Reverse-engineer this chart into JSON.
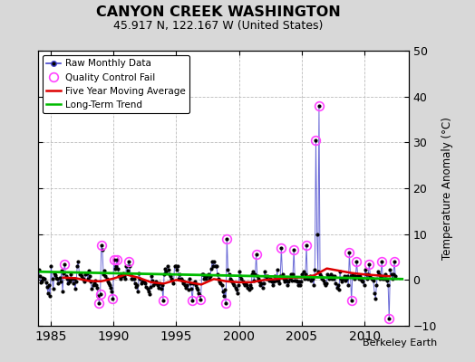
{
  "title": "CANYON CREEK WASHINGTON",
  "subtitle": "45.917 N, 122.167 W (United States)",
  "ylabel": "Temperature Anomaly (°C)",
  "credit": "Berkeley Earth",
  "xlim": [
    1984.0,
    2013.5
  ],
  "ylim": [
    -10,
    50
  ],
  "yticks": [
    -10,
    0,
    10,
    20,
    30,
    40,
    50
  ],
  "xticks": [
    1985,
    1990,
    1995,
    2000,
    2005,
    2010
  ],
  "bg_color": "#d8d8d8",
  "plot_bg_color": "#ffffff",
  "grid_color": "#bbbbbb",
  "raw_line_color": "#4444cc",
  "raw_marker_color": "#000000",
  "qc_fail_color": "#ff44ff",
  "moving_avg_color": "#dd0000",
  "trend_color": "#00bb00",
  "raw_monthly": [
    [
      1984.042,
      2.3
    ],
    [
      1984.125,
      0.8
    ],
    [
      1984.208,
      -0.5
    ],
    [
      1984.292,
      -0.3
    ],
    [
      1984.375,
      0.5
    ],
    [
      1984.458,
      0.3
    ],
    [
      1984.542,
      0.2
    ],
    [
      1984.625,
      -0.5
    ],
    [
      1984.708,
      -1.5
    ],
    [
      1984.792,
      -2.8
    ],
    [
      1984.875,
      -1.2
    ],
    [
      1984.958,
      -3.5
    ],
    [
      1985.042,
      3.0
    ],
    [
      1985.125,
      0.3
    ],
    [
      1985.208,
      -2.0
    ],
    [
      1985.292,
      1.5
    ],
    [
      1985.375,
      1.0
    ],
    [
      1985.458,
      0.5
    ],
    [
      1985.542,
      0.2
    ],
    [
      1985.625,
      -0.8
    ],
    [
      1985.708,
      0.5
    ],
    [
      1985.792,
      -0.3
    ],
    [
      1985.875,
      2.0
    ],
    [
      1985.958,
      -2.5
    ],
    [
      1986.042,
      1.5
    ],
    [
      1986.125,
      3.5
    ],
    [
      1986.208,
      0.8
    ],
    [
      1986.292,
      0.3
    ],
    [
      1986.375,
      -0.8
    ],
    [
      1986.458,
      0.3
    ],
    [
      1986.542,
      -0.3
    ],
    [
      1986.625,
      1.2
    ],
    [
      1986.708,
      0.3
    ],
    [
      1986.792,
      -0.8
    ],
    [
      1986.875,
      0.2
    ],
    [
      1986.958,
      -2.0
    ],
    [
      1987.042,
      -0.3
    ],
    [
      1987.125,
      3.0
    ],
    [
      1987.208,
      4.0
    ],
    [
      1987.292,
      1.2
    ],
    [
      1987.375,
      1.5
    ],
    [
      1987.458,
      0.8
    ],
    [
      1987.542,
      0.3
    ],
    [
      1987.625,
      0.3
    ],
    [
      1987.708,
      -0.3
    ],
    [
      1987.792,
      1.2
    ],
    [
      1987.875,
      1.5
    ],
    [
      1987.958,
      0.3
    ],
    [
      1988.042,
      2.0
    ],
    [
      1988.125,
      0.8
    ],
    [
      1988.208,
      -0.3
    ],
    [
      1988.292,
      -2.0
    ],
    [
      1988.375,
      -1.2
    ],
    [
      1988.458,
      -0.8
    ],
    [
      1988.542,
      -0.2
    ],
    [
      1988.625,
      -1.2
    ],
    [
      1988.708,
      -1.8
    ],
    [
      1988.792,
      -3.5
    ],
    [
      1988.875,
      -5.0
    ],
    [
      1988.958,
      -3.0
    ],
    [
      1989.042,
      7.5
    ],
    [
      1989.125,
      6.5
    ],
    [
      1989.208,
      1.2
    ],
    [
      1989.292,
      2.0
    ],
    [
      1989.375,
      0.8
    ],
    [
      1989.458,
      0.3
    ],
    [
      1989.542,
      -0.3
    ],
    [
      1989.625,
      -0.8
    ],
    [
      1989.708,
      -1.2
    ],
    [
      1989.792,
      -1.8
    ],
    [
      1989.875,
      -2.5
    ],
    [
      1989.958,
      -4.0
    ],
    [
      1990.042,
      4.5
    ],
    [
      1990.125,
      2.5
    ],
    [
      1990.208,
      3.0
    ],
    [
      1990.292,
      4.5
    ],
    [
      1990.375,
      2.5
    ],
    [
      1990.458,
      0.8
    ],
    [
      1990.542,
      0.3
    ],
    [
      1990.625,
      1.2
    ],
    [
      1990.708,
      0.8
    ],
    [
      1990.792,
      1.5
    ],
    [
      1990.875,
      0.8
    ],
    [
      1990.958,
      0.3
    ],
    [
      1991.042,
      3.0
    ],
    [
      1991.125,
      2.0
    ],
    [
      1991.208,
      4.0
    ],
    [
      1991.292,
      3.0
    ],
    [
      1991.375,
      1.2
    ],
    [
      1991.458,
      0.3
    ],
    [
      1991.542,
      0.2
    ],
    [
      1991.625,
      0.3
    ],
    [
      1991.708,
      -0.8
    ],
    [
      1991.792,
      -1.5
    ],
    [
      1991.875,
      -1.2
    ],
    [
      1991.958,
      -2.5
    ],
    [
      1992.042,
      1.5
    ],
    [
      1992.125,
      0.3
    ],
    [
      1992.208,
      -0.8
    ],
    [
      1992.292,
      -0.3
    ],
    [
      1992.375,
      -0.2
    ],
    [
      1992.458,
      -0.3
    ],
    [
      1992.542,
      -0.8
    ],
    [
      1992.625,
      -1.5
    ],
    [
      1992.708,
      -2.0
    ],
    [
      1992.792,
      -2.5
    ],
    [
      1992.875,
      -3.0
    ],
    [
      1992.958,
      -1.5
    ],
    [
      1993.042,
      0.8
    ],
    [
      1993.125,
      -0.2
    ],
    [
      1993.208,
      -1.2
    ],
    [
      1993.292,
      -0.8
    ],
    [
      1993.375,
      -0.3
    ],
    [
      1993.458,
      -0.8
    ],
    [
      1993.542,
      -1.2
    ],
    [
      1993.625,
      -1.8
    ],
    [
      1993.708,
      -0.8
    ],
    [
      1993.792,
      -2.0
    ],
    [
      1993.875,
      -1.2
    ],
    [
      1993.958,
      -4.5
    ],
    [
      1994.042,
      1.2
    ],
    [
      1994.125,
      2.5
    ],
    [
      1994.208,
      1.8
    ],
    [
      1994.292,
      3.0
    ],
    [
      1994.375,
      2.2
    ],
    [
      1994.458,
      1.2
    ],
    [
      1994.542,
      0.8
    ],
    [
      1994.625,
      0.3
    ],
    [
      1994.708,
      -0.2
    ],
    [
      1994.792,
      -0.8
    ],
    [
      1994.875,
      3.0
    ],
    [
      1994.958,
      3.0
    ],
    [
      1995.042,
      2.2
    ],
    [
      1995.125,
      3.0
    ],
    [
      1995.208,
      0.3
    ],
    [
      1995.292,
      1.2
    ],
    [
      1995.375,
      0.3
    ],
    [
      1995.458,
      -0.2
    ],
    [
      1995.542,
      -0.8
    ],
    [
      1995.625,
      -0.3
    ],
    [
      1995.708,
      -1.2
    ],
    [
      1995.792,
      -1.8
    ],
    [
      1995.875,
      -1.2
    ],
    [
      1995.958,
      -2.2
    ],
    [
      1996.042,
      0.3
    ],
    [
      1996.125,
      -0.8
    ],
    [
      1996.208,
      -2.0
    ],
    [
      1996.292,
      -4.5
    ],
    [
      1996.375,
      -0.8
    ],
    [
      1996.458,
      -0.3
    ],
    [
      1996.542,
      -1.2
    ],
    [
      1996.625,
      -1.8
    ],
    [
      1996.708,
      -2.2
    ],
    [
      1996.792,
      -2.8
    ],
    [
      1996.875,
      -3.2
    ],
    [
      1996.958,
      -4.2
    ],
    [
      1997.042,
      1.2
    ],
    [
      1997.125,
      1.2
    ],
    [
      1997.208,
      0.3
    ],
    [
      1997.292,
      0.8
    ],
    [
      1997.375,
      0.3
    ],
    [
      1997.458,
      0.8
    ],
    [
      1997.542,
      1.2
    ],
    [
      1997.625,
      0.3
    ],
    [
      1997.708,
      0.8
    ],
    [
      1997.792,
      2.5
    ],
    [
      1997.875,
      4.0
    ],
    [
      1997.958,
      3.0
    ],
    [
      1998.042,
      4.0
    ],
    [
      1998.125,
      3.0
    ],
    [
      1998.208,
      3.0
    ],
    [
      1998.292,
      1.2
    ],
    [
      1998.375,
      0.3
    ],
    [
      1998.458,
      -0.3
    ],
    [
      1998.542,
      -0.8
    ],
    [
      1998.625,
      -1.2
    ],
    [
      1998.708,
      -2.5
    ],
    [
      1998.792,
      -3.5
    ],
    [
      1998.875,
      -2.2
    ],
    [
      1998.958,
      -5.0
    ],
    [
      1999.042,
      9.0
    ],
    [
      1999.125,
      2.2
    ],
    [
      1999.208,
      1.2
    ],
    [
      1999.292,
      0.3
    ],
    [
      1999.375,
      -0.2
    ],
    [
      1999.458,
      -0.3
    ],
    [
      1999.542,
      -0.8
    ],
    [
      1999.625,
      -1.2
    ],
    [
      1999.708,
      -1.8
    ],
    [
      1999.792,
      -2.2
    ],
    [
      1999.875,
      -2.8
    ],
    [
      1999.958,
      -1.2
    ],
    [
      2000.042,
      1.8
    ],
    [
      2000.125,
      0.8
    ],
    [
      2000.208,
      0.3
    ],
    [
      2000.292,
      -0.3
    ],
    [
      2000.375,
      -0.8
    ],
    [
      2000.458,
      -1.2
    ],
    [
      2000.542,
      -0.8
    ],
    [
      2000.625,
      -1.2
    ],
    [
      2000.708,
      -1.8
    ],
    [
      2000.792,
      -2.2
    ],
    [
      2000.875,
      -1.2
    ],
    [
      2000.958,
      -1.8
    ],
    [
      2001.042,
      1.2
    ],
    [
      2001.125,
      1.8
    ],
    [
      2001.208,
      -0.2
    ],
    [
      2001.292,
      1.2
    ],
    [
      2001.375,
      5.5
    ],
    [
      2001.458,
      0.8
    ],
    [
      2001.542,
      0.3
    ],
    [
      2001.625,
      -0.3
    ],
    [
      2001.708,
      -1.2
    ],
    [
      2001.792,
      -0.8
    ],
    [
      2001.875,
      -1.8
    ],
    [
      2001.958,
      -0.8
    ],
    [
      2002.042,
      1.8
    ],
    [
      2002.125,
      0.8
    ],
    [
      2002.208,
      0.3
    ],
    [
      2002.292,
      0.8
    ],
    [
      2002.375,
      -0.2
    ],
    [
      2002.458,
      0.3
    ],
    [
      2002.542,
      -0.2
    ],
    [
      2002.625,
      -0.3
    ],
    [
      2002.708,
      -1.2
    ],
    [
      2002.792,
      -0.3
    ],
    [
      2002.875,
      0.8
    ],
    [
      2002.958,
      -0.2
    ],
    [
      2003.042,
      2.2
    ],
    [
      2003.125,
      -0.2
    ],
    [
      2003.208,
      -0.8
    ],
    [
      2003.292,
      0.8
    ],
    [
      2003.375,
      7.0
    ],
    [
      2003.458,
      1.2
    ],
    [
      2003.542,
      0.3
    ],
    [
      2003.625,
      -0.3
    ],
    [
      2003.708,
      0.3
    ],
    [
      2003.792,
      -0.2
    ],
    [
      2003.875,
      -1.2
    ],
    [
      2003.958,
      -0.3
    ],
    [
      2004.042,
      0.3
    ],
    [
      2004.125,
      1.2
    ],
    [
      2004.208,
      -0.2
    ],
    [
      2004.292,
      1.2
    ],
    [
      2004.375,
      6.5
    ],
    [
      2004.458,
      -0.2
    ],
    [
      2004.542,
      -0.2
    ],
    [
      2004.625,
      -0.3
    ],
    [
      2004.708,
      -1.2
    ],
    [
      2004.792,
      -0.3
    ],
    [
      2004.875,
      -1.2
    ],
    [
      2004.958,
      -0.3
    ],
    [
      2005.042,
      1.2
    ],
    [
      2005.125,
      1.8
    ],
    [
      2005.208,
      0.3
    ],
    [
      2005.292,
      1.2
    ],
    [
      2005.375,
      7.5
    ],
    [
      2005.458,
      0.3
    ],
    [
      2005.542,
      0.3
    ],
    [
      2005.625,
      0.8
    ],
    [
      2005.708,
      -0.2
    ],
    [
      2005.792,
      0.3
    ],
    [
      2005.875,
      0.3
    ],
    [
      2005.958,
      -1.2
    ],
    [
      2006.042,
      2.2
    ],
    [
      2006.125,
      30.5
    ],
    [
      2006.208,
      10.0
    ],
    [
      2006.292,
      1.8
    ],
    [
      2006.375,
      38.0
    ],
    [
      2006.458,
      1.2
    ],
    [
      2006.542,
      0.8
    ],
    [
      2006.625,
      0.3
    ],
    [
      2006.708,
      -0.2
    ],
    [
      2006.792,
      -0.8
    ],
    [
      2006.875,
      -1.2
    ],
    [
      2006.958,
      -0.8
    ],
    [
      2007.042,
      1.2
    ],
    [
      2007.125,
      0.8
    ],
    [
      2007.208,
      0.3
    ],
    [
      2007.292,
      1.2
    ],
    [
      2007.375,
      0.3
    ],
    [
      2007.458,
      0.8
    ],
    [
      2007.542,
      0.3
    ],
    [
      2007.625,
      0.8
    ],
    [
      2007.708,
      -0.8
    ],
    [
      2007.792,
      -1.8
    ],
    [
      2007.875,
      -1.2
    ],
    [
      2007.958,
      -2.2
    ],
    [
      2008.042,
      1.8
    ],
    [
      2008.125,
      0.3
    ],
    [
      2008.208,
      -0.3
    ],
    [
      2008.292,
      0.3
    ],
    [
      2008.375,
      0.8
    ],
    [
      2008.458,
      -0.2
    ],
    [
      2008.542,
      0.3
    ],
    [
      2008.625,
      0.8
    ],
    [
      2008.708,
      -1.2
    ],
    [
      2008.792,
      6.0
    ],
    [
      2008.875,
      0.8
    ],
    [
      2008.958,
      -4.5
    ],
    [
      2009.042,
      1.2
    ],
    [
      2009.125,
      0.8
    ],
    [
      2009.208,
      0.3
    ],
    [
      2009.292,
      0.8
    ],
    [
      2009.375,
      4.0
    ],
    [
      2009.458,
      0.8
    ],
    [
      2009.542,
      0.3
    ],
    [
      2009.625,
      0.8
    ],
    [
      2009.708,
      0.3
    ],
    [
      2009.792,
      -0.2
    ],
    [
      2009.875,
      -0.3
    ],
    [
      2009.958,
      -1.2
    ],
    [
      2010.042,
      2.2
    ],
    [
      2010.125,
      1.2
    ],
    [
      2010.208,
      0.3
    ],
    [
      2010.292,
      1.2
    ],
    [
      2010.375,
      3.5
    ],
    [
      2010.458,
      0.8
    ],
    [
      2010.542,
      0.3
    ],
    [
      2010.625,
      0.3
    ],
    [
      2010.708,
      -0.2
    ],
    [
      2010.792,
      -2.8
    ],
    [
      2010.875,
      -4.0
    ],
    [
      2010.958,
      -1.2
    ],
    [
      2011.042,
      1.8
    ],
    [
      2011.125,
      1.2
    ],
    [
      2011.208,
      0.3
    ],
    [
      2011.292,
      0.8
    ],
    [
      2011.375,
      4.0
    ],
    [
      2011.458,
      0.3
    ],
    [
      2011.542,
      0.3
    ],
    [
      2011.625,
      1.2
    ],
    [
      2011.708,
      0.3
    ],
    [
      2011.792,
      -0.2
    ],
    [
      2011.875,
      -1.2
    ],
    [
      2011.958,
      -8.5
    ],
    [
      2012.042,
      2.2
    ],
    [
      2012.125,
      1.2
    ],
    [
      2012.208,
      0.3
    ],
    [
      2012.292,
      1.2
    ],
    [
      2012.375,
      4.0
    ],
    [
      2012.458,
      0.8
    ]
  ],
  "qc_fail_points": [
    [
      1986.125,
      3.5
    ],
    [
      1988.875,
      -5.0
    ],
    [
      1988.958,
      -3.0
    ],
    [
      1989.042,
      7.5
    ],
    [
      1989.958,
      -4.0
    ],
    [
      1990.042,
      4.5
    ],
    [
      1990.292,
      4.5
    ],
    [
      1991.208,
      4.0
    ],
    [
      1993.958,
      -4.5
    ],
    [
      1996.292,
      -4.5
    ],
    [
      1996.958,
      -4.2
    ],
    [
      1998.958,
      -5.0
    ],
    [
      1999.042,
      9.0
    ],
    [
      2001.375,
      5.5
    ],
    [
      2003.375,
      7.0
    ],
    [
      2004.375,
      6.5
    ],
    [
      2005.375,
      7.5
    ],
    [
      2006.125,
      30.5
    ],
    [
      2006.375,
      38.0
    ],
    [
      2008.792,
      6.0
    ],
    [
      2008.958,
      -4.5
    ],
    [
      2009.375,
      4.0
    ],
    [
      2010.375,
      3.5
    ],
    [
      2011.375,
      4.0
    ],
    [
      2011.958,
      -8.5
    ],
    [
      2012.375,
      4.0
    ]
  ],
  "moving_avg": [
    [
      1986.0,
      0.5
    ],
    [
      1987.0,
      0.4
    ],
    [
      1988.0,
      -0.2
    ],
    [
      1989.0,
      -0.3
    ],
    [
      1990.0,
      0.3
    ],
    [
      1991.0,
      1.2
    ],
    [
      1992.0,
      0.5
    ],
    [
      1993.0,
      -0.5
    ],
    [
      1994.0,
      -0.8
    ],
    [
      1995.0,
      0.0
    ],
    [
      1996.0,
      -0.5
    ],
    [
      1997.0,
      -1.0
    ],
    [
      1998.0,
      0.2
    ],
    [
      1999.0,
      -0.3
    ],
    [
      2000.0,
      -0.5
    ],
    [
      2001.0,
      -0.5
    ],
    [
      2002.0,
      0.0
    ],
    [
      2003.0,
      0.2
    ],
    [
      2004.0,
      0.5
    ],
    [
      2005.0,
      0.5
    ],
    [
      2006.0,
      1.0
    ],
    [
      2007.0,
      2.5
    ],
    [
      2008.0,
      2.0
    ],
    [
      2009.0,
      1.5
    ],
    [
      2010.0,
      1.2
    ],
    [
      2011.0,
      1.0
    ],
    [
      2012.0,
      0.8
    ]
  ],
  "trend_x": [
    1984.0,
    2013.0
  ],
  "trend_y": [
    1.8,
    0.2
  ]
}
